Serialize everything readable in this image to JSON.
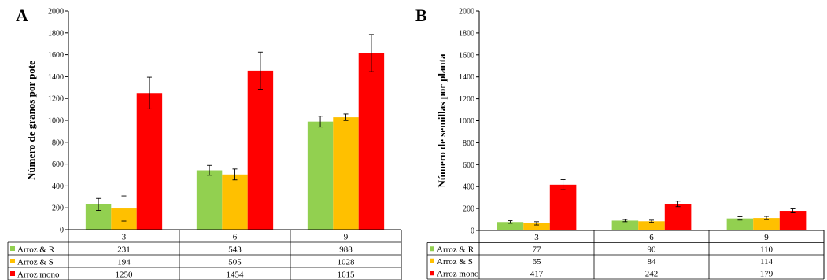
{
  "colors": {
    "series": [
      "#92d050",
      "#ffc000",
      "#ff0000"
    ],
    "error_bar": "#000000",
    "axis": "#000000"
  },
  "chart_data": [
    {
      "panel": "A",
      "type": "bar",
      "ylabel": "Número de granos por pote",
      "ylim": [
        0,
        2000
      ],
      "yticks": [
        0,
        200,
        400,
        600,
        800,
        1000,
        1200,
        1400,
        1600,
        1800,
        2000
      ],
      "categories": [
        "3",
        "6",
        "9"
      ],
      "series": [
        {
          "name": "Arroz & R",
          "values": [
            231,
            543,
            988
          ],
          "errors": [
            55,
            45,
            50
          ]
        },
        {
          "name": "Arroz & S",
          "values": [
            194,
            505,
            1028
          ],
          "errors": [
            115,
            50,
            30
          ]
        },
        {
          "name": "Arroz mono",
          "values": [
            1250,
            1454,
            1615
          ],
          "errors": [
            145,
            170,
            170
          ]
        }
      ],
      "grid": false,
      "legend": "data-table"
    },
    {
      "panel": "B",
      "type": "bar",
      "ylabel": "Número de semillas por planta",
      "ylim": [
        0,
        2000
      ],
      "yticks": [
        0,
        200,
        400,
        600,
        800,
        1000,
        1200,
        1400,
        1600,
        1800,
        2000
      ],
      "categories": [
        "3",
        "6",
        "9"
      ],
      "series": [
        {
          "name": "Arroz & R",
          "values": [
            77,
            90,
            110
          ],
          "errors": [
            12,
            10,
            15
          ]
        },
        {
          "name": "Arroz & S",
          "values": [
            65,
            84,
            114
          ],
          "errors": [
            15,
            10,
            15
          ]
        },
        {
          "name": "Arroz mono",
          "values": [
            417,
            242,
            179
          ],
          "errors": [
            45,
            25,
            18
          ]
        }
      ],
      "grid": false,
      "legend": "data-table"
    }
  ]
}
